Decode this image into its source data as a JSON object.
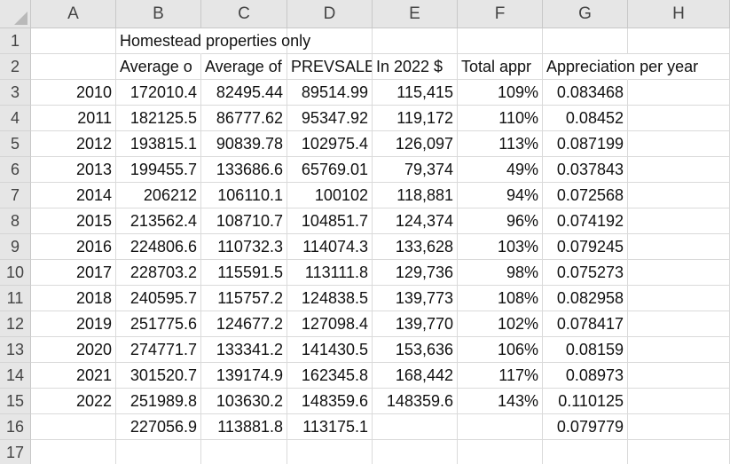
{
  "columns": [
    "A",
    "B",
    "C",
    "D",
    "E",
    "F",
    "G",
    "H"
  ],
  "rows": [
    "1",
    "2",
    "3",
    "4",
    "5",
    "6",
    "7",
    "8",
    "9",
    "10",
    "11",
    "12",
    "13",
    "14",
    "15",
    "16",
    "17"
  ],
  "cells": {
    "r1": {
      "B": "Homestead properties only"
    },
    "r2": {
      "B": "Average o",
      "C": "Average of",
      "D": "PREVSALE",
      "E": "In 2022 $",
      "F": "Total appr",
      "G": "Appreciation per year"
    },
    "r3": {
      "A": "2010",
      "B": "172010.4",
      "C": "82495.44",
      "D": "89514.99",
      "E": "115,415",
      "F": "109%",
      "G": "0.083468"
    },
    "r4": {
      "A": "2011",
      "B": "182125.5",
      "C": "86777.62",
      "D": "95347.92",
      "E": "119,172",
      "F": "110%",
      "G": "0.08452"
    },
    "r5": {
      "A": "2012",
      "B": "193815.1",
      "C": "90839.78",
      "D": "102975.4",
      "E": "126,097",
      "F": "113%",
      "G": "0.087199"
    },
    "r6": {
      "A": "2013",
      "B": "199455.7",
      "C": "133686.6",
      "D": "65769.01",
      "E": "79,374",
      "F": "49%",
      "G": "0.037843"
    },
    "r7": {
      "A": "2014",
      "B": "206212",
      "C": "106110.1",
      "D": "100102",
      "E": "118,881",
      "F": "94%",
      "G": "0.072568"
    },
    "r8": {
      "A": "2015",
      "B": "213562.4",
      "C": "108710.7",
      "D": "104851.7",
      "E": "124,374",
      "F": "96%",
      "G": "0.074192"
    },
    "r9": {
      "A": "2016",
      "B": "224806.6",
      "C": "110732.3",
      "D": "114074.3",
      "E": "133,628",
      "F": "103%",
      "G": "0.079245"
    },
    "r10": {
      "A": "2017",
      "B": "228703.2",
      "C": "115591.5",
      "D": "113111.8",
      "E": "129,736",
      "F": "98%",
      "G": "0.075273"
    },
    "r11": {
      "A": "2018",
      "B": "240595.7",
      "C": "115757.2",
      "D": "124838.5",
      "E": "139,773",
      "F": "108%",
      "G": "0.082958"
    },
    "r12": {
      "A": "2019",
      "B": "251775.6",
      "C": "124677.2",
      "D": "127098.4",
      "E": "139,770",
      "F": "102%",
      "G": "0.078417"
    },
    "r13": {
      "A": "2020",
      "B": "274771.7",
      "C": "133341.2",
      "D": "141430.5",
      "E": "153,636",
      "F": "106%",
      "G": "0.08159"
    },
    "r14": {
      "A": "2021",
      "B": "301520.7",
      "C": "139174.9",
      "D": "162345.8",
      "E": "168,442",
      "F": "117%",
      "G": "0.08973"
    },
    "r15": {
      "A": "2022",
      "B": "251989.8",
      "C": "103630.2",
      "D": "148359.6",
      "E": "148359.6",
      "F": "143%",
      "G": "0.110125"
    },
    "r16": {
      "B": "227056.9",
      "C": "113881.8",
      "D": "113175.1",
      "G": "0.079779"
    },
    "r17": {}
  }
}
